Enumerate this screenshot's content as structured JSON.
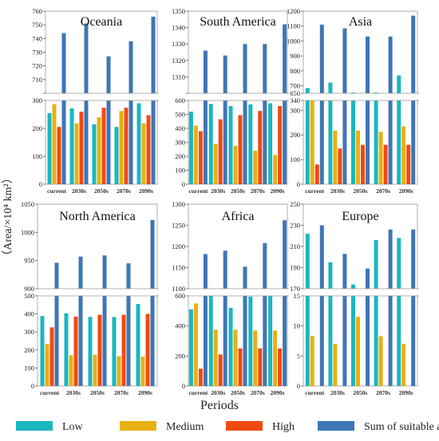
{
  "ylabel_text": "（Area/×10⁴ km²）",
  "xlabel_text": "Periods",
  "chart_data": {
    "type": "bar",
    "categories": [
      "current",
      "2030s",
      "2050s",
      "2070s",
      "2090s"
    ],
    "xlabel": "Periods",
    "ylabel": "（Area/×10⁴ km²）",
    "legend": {
      "placement": "bottom",
      "entries": [
        {
          "name": "Low",
          "color": "#1ab7c0"
        },
        {
          "name": "Medium",
          "color": "#e8b012"
        },
        {
          "name": "High",
          "color": "#f04a14"
        },
        {
          "name": "Sum of  suitable area",
          "color": "#3f76b5"
        }
      ]
    },
    "panels": [
      {
        "title": "Oceania",
        "upper": {
          "ylim": [
            700,
            760
          ],
          "ticks": [
            700,
            710,
            720,
            730,
            740,
            750,
            760
          ],
          "show_tick_labels": [
            710,
            720,
            730,
            740,
            750,
            760
          ]
        },
        "lower": {
          "ylim": [
            0,
            300
          ],
          "ticks": [
            0,
            100,
            200,
            300
          ]
        },
        "series": [
          {
            "name": "Low",
            "values": [
              255,
              272,
              215,
              205,
              290
            ]
          },
          {
            "name": "Medium",
            "values": [
              287,
              218,
              240,
              262,
              218
            ]
          },
          {
            "name": "High",
            "values": [
              205,
              260,
              274,
              274,
              247
            ]
          },
          {
            "name": "Sum of  suitable area",
            "values": [
              744,
              751,
              727,
              738,
              756
            ]
          }
        ]
      },
      {
        "title": "South America",
        "upper": {
          "ylim": [
            1300,
            1350
          ],
          "ticks": [
            1300,
            1310,
            1320,
            1330,
            1340,
            1350
          ],
          "show_tick_labels": [
            1310,
            1320,
            1330,
            1340,
            1350
          ]
        },
        "lower": {
          "ylim": [
            0,
            600
          ],
          "ticks": [
            0,
            100,
            200,
            300,
            400,
            500,
            600
          ]
        },
        "series": [
          {
            "name": "Low",
            "values": [
              520,
              575,
              560,
              572,
              580
            ]
          },
          {
            "name": "Medium",
            "values": [
              420,
              290,
              275,
              240,
              210
            ]
          },
          {
            "name": "High",
            "values": [
              380,
              465,
              495,
              525,
              560
            ]
          },
          {
            "name": "Sum of  suitable area",
            "values": [
              1326,
              1323,
              1330,
              1330,
              1342
            ]
          }
        ]
      },
      {
        "title": "Asia",
        "upper": {
          "ylim": [
            650,
            1200
          ],
          "ticks": [
            650,
            700,
            800,
            900,
            1000,
            1100,
            1200
          ]
        },
        "lower": {
          "ylim": [
            0,
            340
          ],
          "ticks": [
            0,
            100,
            200,
            300,
            340
          ]
        },
        "series": [
          {
            "name": "Low",
            "values": [
              685,
              722,
              655,
              655,
              770
            ]
          },
          {
            "name": "Medium",
            "values": [
              340,
              218,
              218,
              213,
              235
            ]
          },
          {
            "name": "High",
            "values": [
              80,
              145,
              160,
              160,
              160
            ]
          },
          {
            "name": "Sum of  suitable area",
            "values": [
              1110,
              1085,
              1030,
              1030,
              1170
            ]
          }
        ]
      },
      {
        "title": "North America",
        "upper": {
          "ylim": [
            900,
            1050
          ],
          "ticks": [
            900,
            950,
            1000,
            1050
          ]
        },
        "lower": {
          "ylim": [
            0,
            500
          ],
          "ticks": [
            0,
            100,
            200,
            300,
            400,
            500
          ]
        },
        "series": [
          {
            "name": "Low",
            "values": [
              388,
              403,
              383,
              383,
              455
            ]
          },
          {
            "name": "Medium",
            "values": [
              233,
              170,
              173,
              165,
              163
            ]
          },
          {
            "name": "High",
            "values": [
              325,
              385,
              395,
              395,
              400
            ]
          },
          {
            "name": "Sum of  suitable area",
            "values": [
              946,
              957,
              959,
              945,
              1022
            ]
          }
        ]
      },
      {
        "title": "Africa",
        "upper": {
          "ylim": [
            1100,
            1300
          ],
          "ticks": [
            1100,
            1150,
            1200,
            1250,
            1300
          ]
        },
        "lower": {
          "ylim": [
            0,
            600
          ],
          "ticks": [
            0,
            200,
            400,
            600
          ]
        },
        "series": [
          {
            "name": "Low",
            "values": [
              510,
              610,
              520,
              595,
              620
            ]
          },
          {
            "name": "Medium",
            "values": [
              550,
              375,
              375,
              370,
              370
            ]
          },
          {
            "name": "High",
            "values": [
              115,
              210,
              250,
              250,
              250
            ]
          },
          {
            "name": "Sum of  suitable area",
            "values": [
              1182,
              1190,
              1152,
              1208,
              1262
            ]
          }
        ]
      },
      {
        "title": "Europe",
        "upper": {
          "ylim": [
            170,
            250
          ],
          "ticks": [
            170,
            190,
            210,
            230,
            250
          ]
        },
        "lower": {
          "ylim": [
            0,
            15
          ],
          "ticks": [
            0,
            5,
            10,
            15
          ]
        },
        "series": [
          {
            "name": "Low",
            "values": [
              222,
              195,
              174,
              216,
              218
            ]
          },
          {
            "name": "Medium",
            "values": [
              8.3,
              7.0,
              11.5,
              8.3,
              7.0
            ]
          },
          {
            "name": "High",
            "values": [
              null,
              null,
              null,
              null,
              null
            ]
          },
          {
            "name": "Sum of  suitable area",
            "values": [
              230,
              203,
              189,
              226,
              226
            ]
          }
        ]
      }
    ]
  }
}
